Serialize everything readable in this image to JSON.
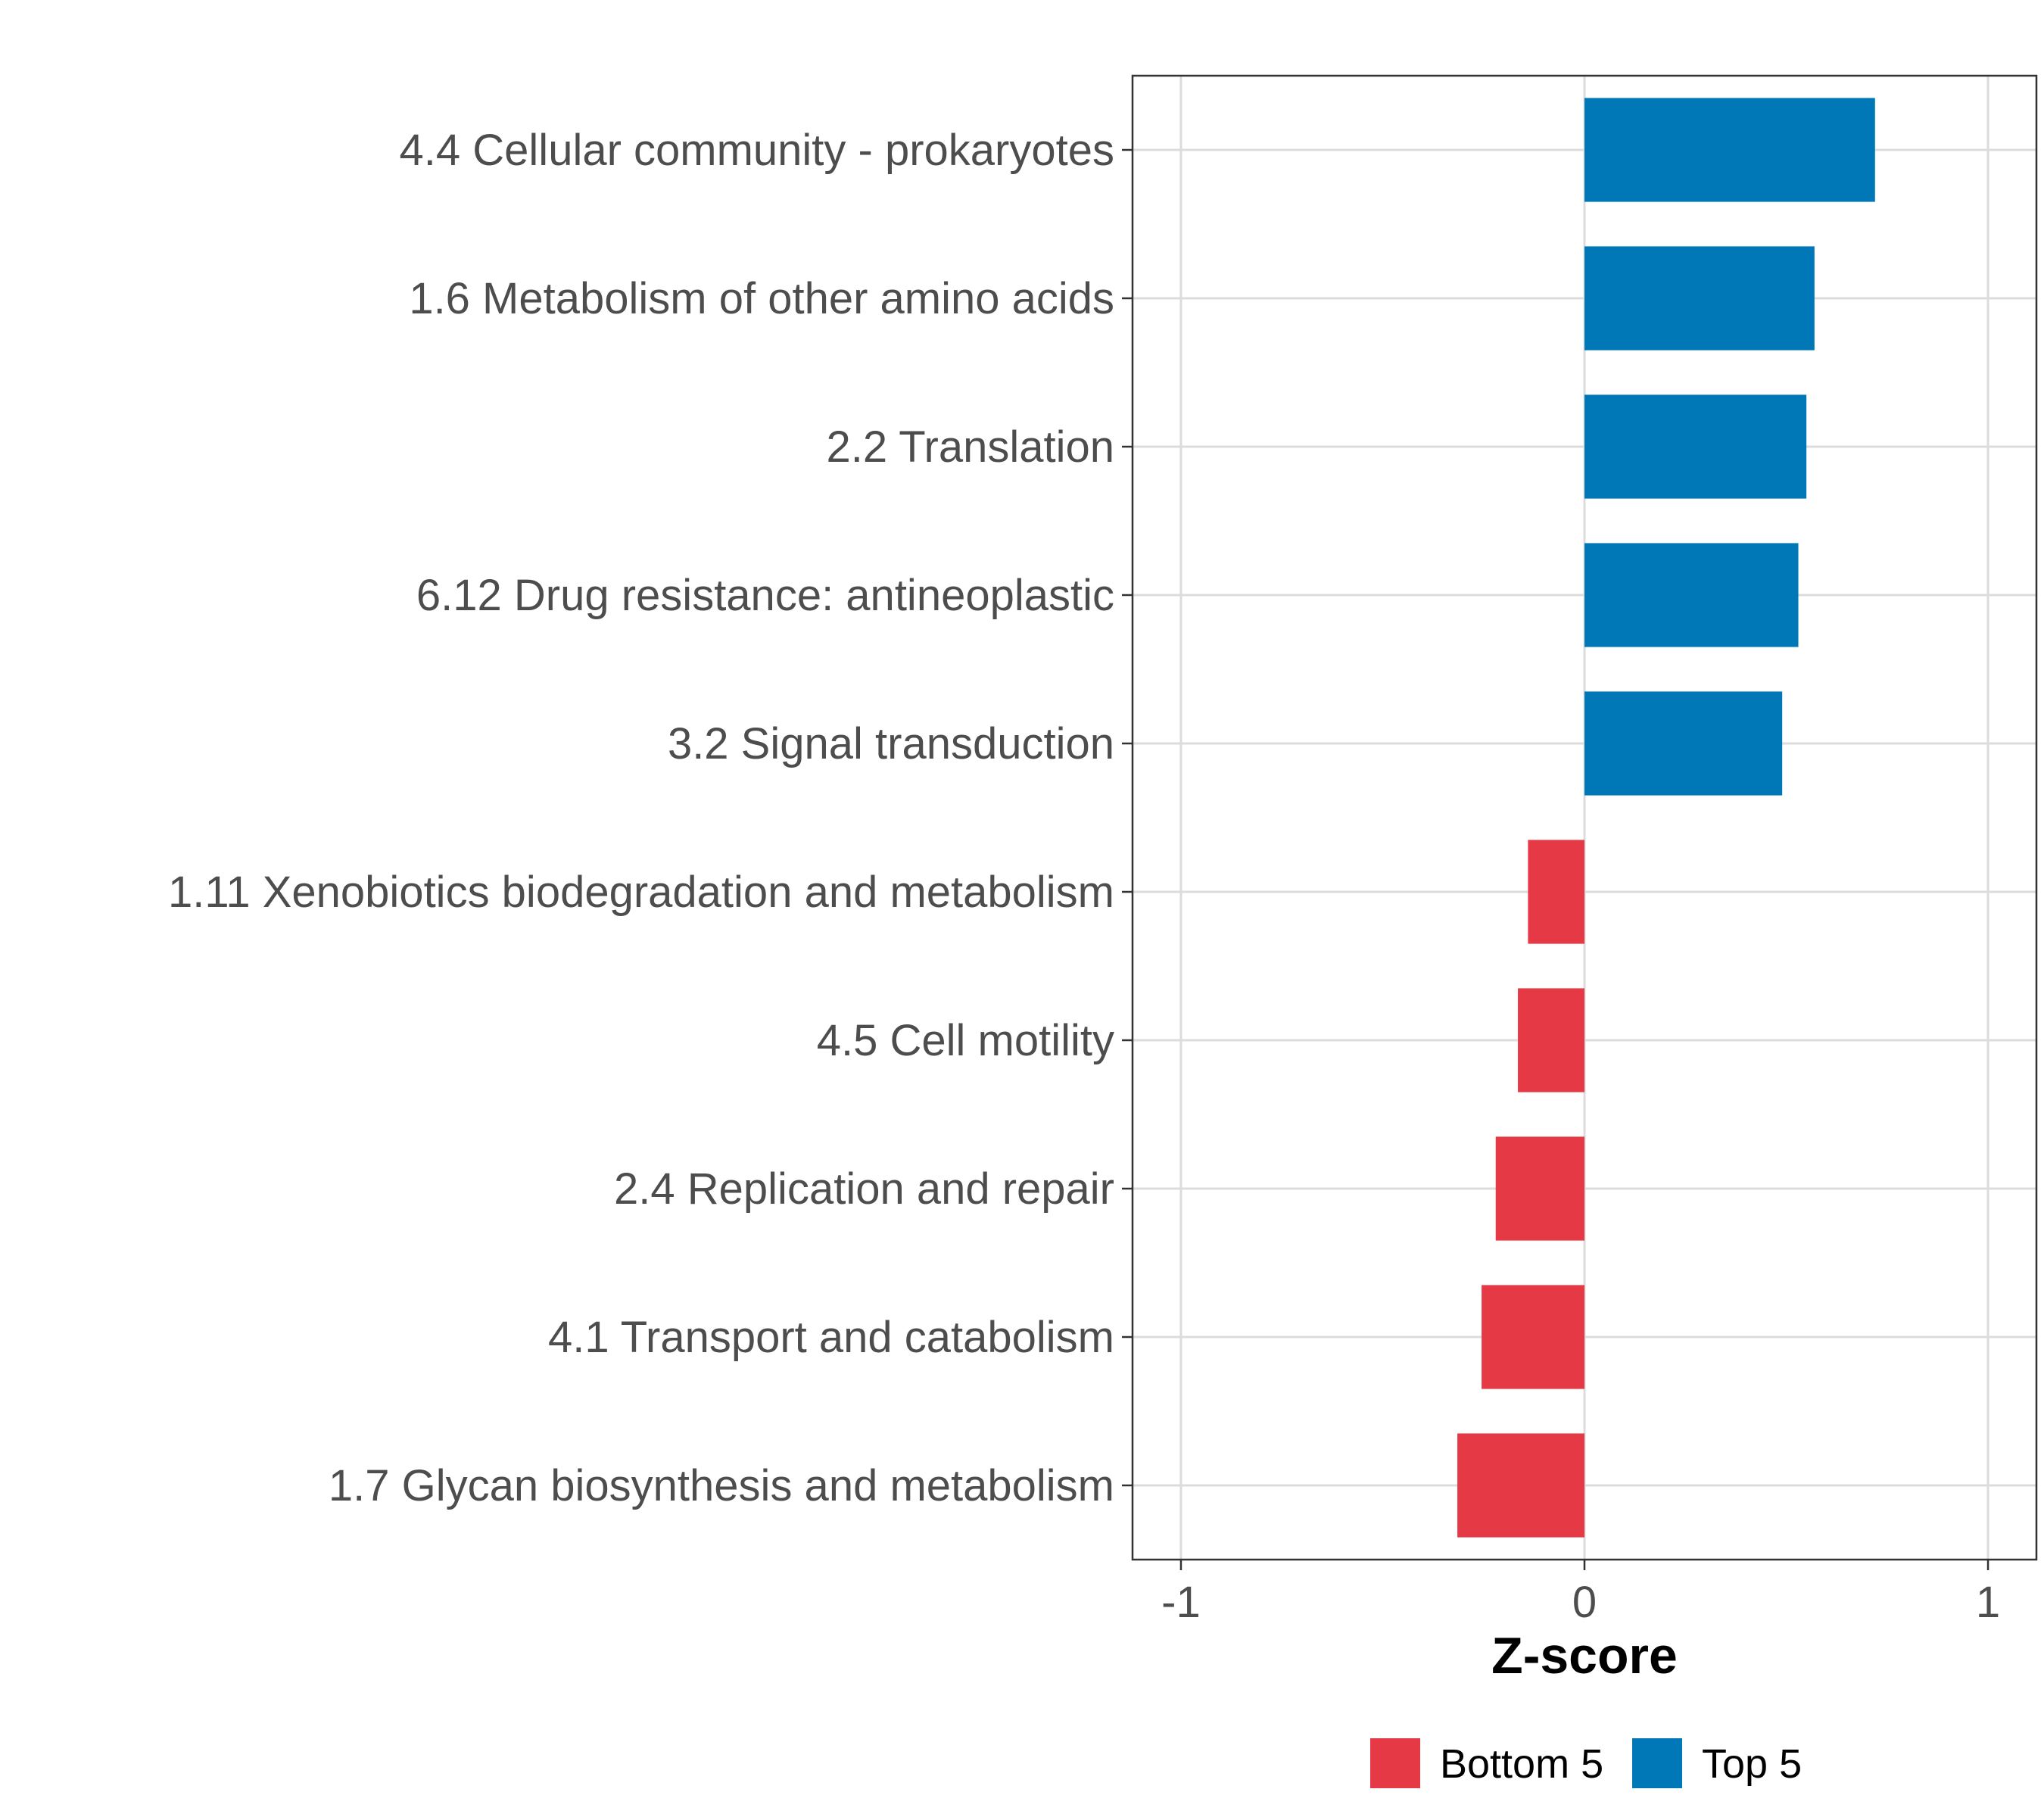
{
  "chart_data": {
    "type": "bar",
    "orientation": "horizontal",
    "categories": [
      "4.4 Cellular community - prokaryotes",
      "1.6 Metabolism of other amino acids",
      "2.2 Translation",
      "6.12 Drug resistance: antineoplastic",
      "3.2 Signal transduction",
      "1.11 Xenobiotics biodegradation and metabolism",
      "4.5 Cell motility",
      "2.4 Replication and repair",
      "4.1 Transport and catabolism",
      "1.7 Glycan biosynthesis and metabolism"
    ],
    "values": [
      0.72,
      0.57,
      0.55,
      0.53,
      0.49,
      -0.14,
      -0.165,
      -0.22,
      -0.255,
      -0.315
    ],
    "groups": [
      "Top 5",
      "Top 5",
      "Top 5",
      "Top 5",
      "Top 5",
      "Bottom 5",
      "Bottom 5",
      "Bottom 5",
      "Bottom 5",
      "Bottom 5"
    ],
    "xlabel": "Z-score",
    "ylabel": "",
    "xlim": [
      -1.12,
      1.12
    ],
    "xticks": [
      -1,
      0,
      1
    ],
    "xtick_labels": [
      "-1",
      "0",
      "1"
    ],
    "grid": true,
    "legend": {
      "position": "bottom",
      "entries": [
        {
          "label": "Bottom 5",
          "color": "#e63946"
        },
        {
          "label": "Top 5",
          "color": "#0077b6"
        }
      ]
    },
    "colors": {
      "Bottom 5": "#e63946",
      "Top 5": "#0077b6"
    }
  }
}
